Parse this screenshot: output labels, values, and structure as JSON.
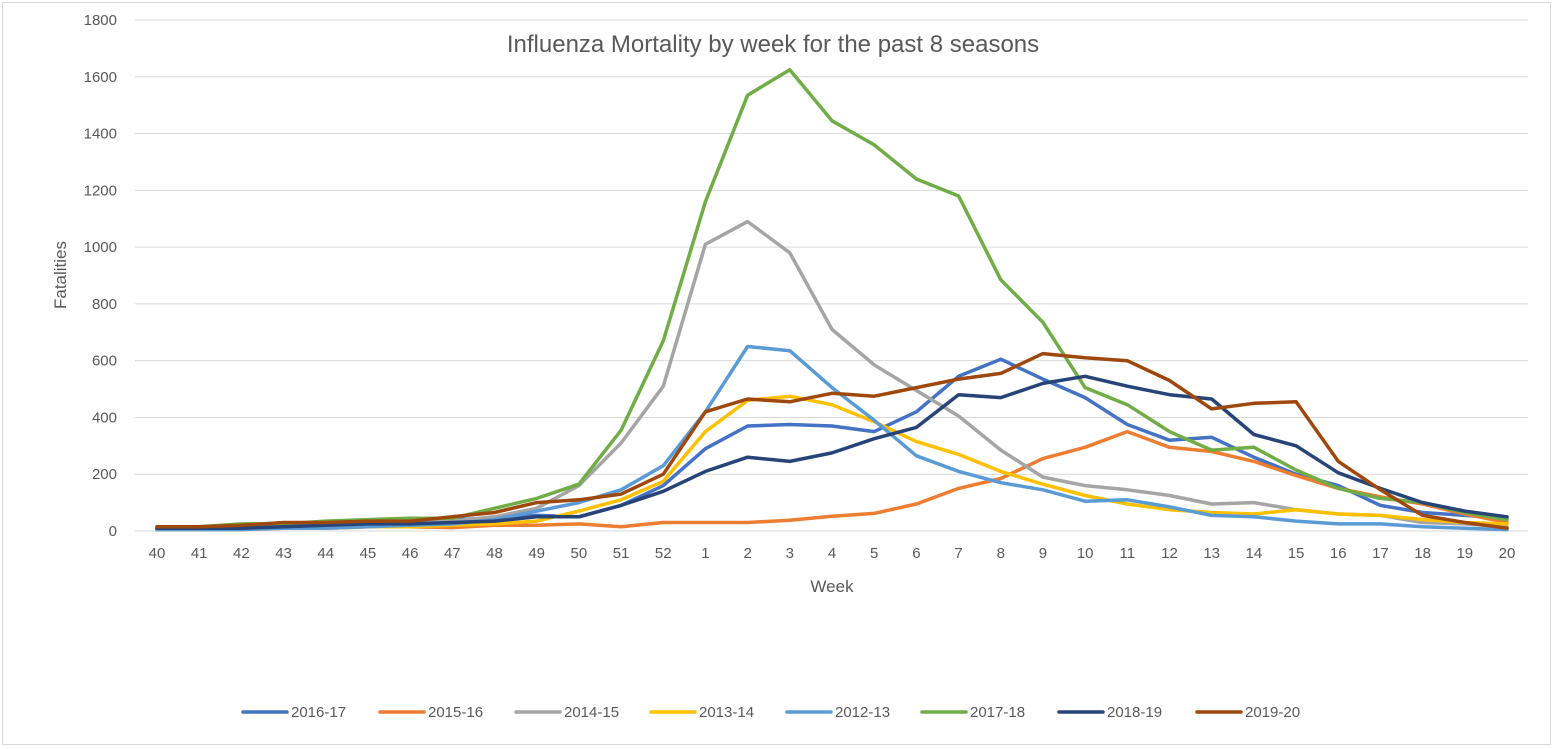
{
  "chart_data": {
    "type": "line",
    "title": "Influenza Mortality by week for the past 8 seasons",
    "xlabel": "Week",
    "ylabel": "Fatalities",
    "ylim": [
      0,
      1800
    ],
    "yticks": [
      0,
      200,
      400,
      600,
      800,
      1000,
      1200,
      1400,
      1600,
      1800
    ],
    "grid": true,
    "legend_position": "bottom",
    "categories": [
      "40",
      "41",
      "42",
      "43",
      "44",
      "45",
      "46",
      "47",
      "48",
      "49",
      "50",
      "51",
      "52",
      "1",
      "2",
      "3",
      "4",
      "5",
      "6",
      "7",
      "8",
      "9",
      "10",
      "11",
      "12",
      "13",
      "14",
      "15",
      "16",
      "17",
      "18",
      "19",
      "20"
    ],
    "series": [
      {
        "name": "2016-17",
        "color": "#4472C4",
        "values": [
          10,
          10,
          15,
          20,
          25,
          30,
          35,
          40,
          45,
          55,
          50,
          90,
          160,
          290,
          370,
          375,
          370,
          350,
          420,
          545,
          605,
          535,
          470,
          375,
          320,
          330,
          260,
          200,
          160,
          90,
          65,
          55,
          45
        ]
      },
      {
        "name": "2015-16",
        "color": "#ED7D31",
        "values": [
          5,
          5,
          8,
          10,
          10,
          15,
          15,
          12,
          20,
          20,
          25,
          15,
          30,
          30,
          30,
          38,
          52,
          62,
          95,
          150,
          185,
          255,
          295,
          350,
          295,
          280,
          245,
          195,
          150,
          120,
          95,
          60,
          30
        ]
      },
      {
        "name": "2014-15",
        "color": "#A5A5A5",
        "values": [
          10,
          12,
          15,
          20,
          25,
          30,
          30,
          35,
          50,
          80,
          160,
          310,
          510,
          1010,
          1090,
          980,
          710,
          585,
          495,
          405,
          285,
          190,
          160,
          145,
          125,
          95,
          100,
          75,
          60,
          55,
          30,
          25,
          15
        ]
      },
      {
        "name": "2013-14",
        "color": "#FFC000",
        "values": [
          5,
          5,
          5,
          10,
          10,
          15,
          15,
          20,
          25,
          35,
          70,
          110,
          175,
          350,
          460,
          475,
          445,
          385,
          315,
          270,
          210,
          165,
          125,
          95,
          75,
          65,
          60,
          75,
          60,
          55,
          40,
          30,
          25
        ]
      },
      {
        "name": "2012-13",
        "color": "#5B9BD5",
        "values": [
          5,
          5,
          5,
          10,
          10,
          15,
          20,
          25,
          40,
          70,
          100,
          145,
          230,
          420,
          650,
          635,
          505,
          390,
          265,
          210,
          170,
          145,
          105,
          110,
          85,
          55,
          50,
          35,
          25,
          25,
          15,
          10,
          5
        ]
      },
      {
        "name": "2017-18",
        "color": "#70AD47",
        "values": [
          15,
          15,
          25,
          25,
          35,
          40,
          45,
          45,
          80,
          115,
          165,
          355,
          670,
          1160,
          1535,
          1625,
          1445,
          1360,
          1240,
          1180,
          885,
          735,
          505,
          445,
          350,
          285,
          295,
          215,
          150,
          115,
          100,
          65,
          40
        ]
      },
      {
        "name": "2018-19",
        "color": "#264478",
        "values": [
          10,
          10,
          10,
          15,
          20,
          25,
          25,
          30,
          35,
          50,
          50,
          90,
          140,
          210,
          260,
          245,
          275,
          325,
          365,
          480,
          470,
          520,
          545,
          510,
          480,
          465,
          340,
          300,
          205,
          150,
          100,
          70,
          50
        ]
      },
      {
        "name": "2019-20",
        "color": "#9E480E",
        "values": [
          15,
          15,
          20,
          30,
          30,
          35,
          35,
          50,
          65,
          100,
          110,
          130,
          200,
          420,
          465,
          455,
          485,
          475,
          505,
          535,
          555,
          625,
          610,
          600,
          530,
          430,
          450,
          455,
          245,
          145,
          55,
          30,
          10
        ]
      }
    ]
  }
}
